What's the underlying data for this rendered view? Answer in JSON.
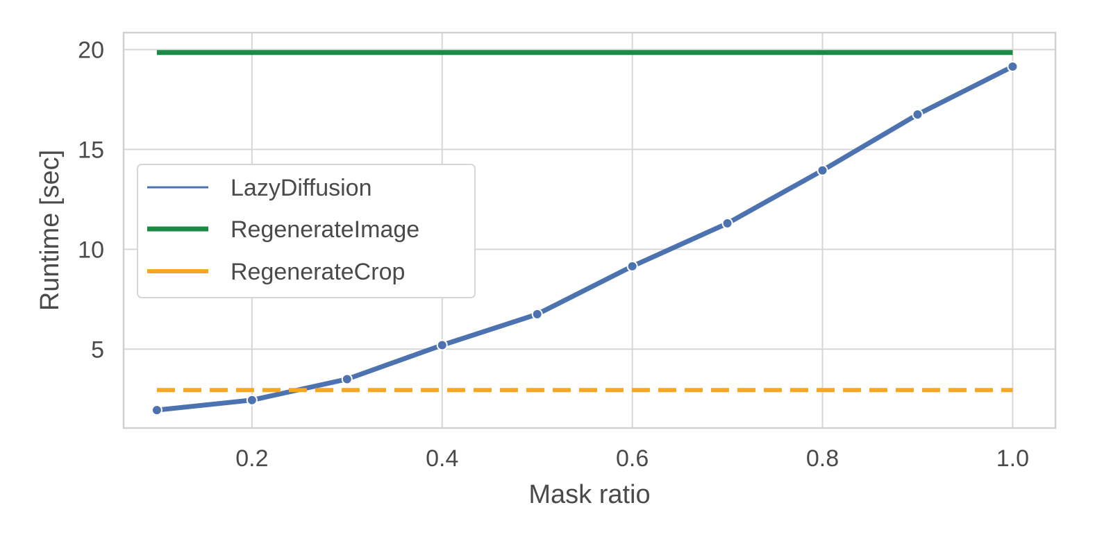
{
  "chart_data": {
    "type": "line",
    "xlabel": "Mask ratio",
    "ylabel": "Runtime [sec]",
    "xlim": [
      0.065,
      1.045
    ],
    "ylim": [
      1.05,
      20.85
    ],
    "xticks": [
      0.2,
      0.4,
      0.6,
      0.8,
      1.0
    ],
    "xtick_labels": [
      "0.2",
      "0.4",
      "0.6",
      "0.8",
      "1.0"
    ],
    "yticks": [
      5,
      10,
      15,
      20
    ],
    "ytick_labels": [
      "5",
      "10",
      "15",
      "20"
    ],
    "grid": true,
    "legend_position": "center-left",
    "series": [
      {
        "name": "LazyDiffusion",
        "color": "#4c72b0",
        "style": "solid",
        "markers": true,
        "x": [
          0.1,
          0.2,
          0.3,
          0.4,
          0.5,
          0.6,
          0.7,
          0.8,
          0.9,
          1.0
        ],
        "y": [
          1.95,
          2.45,
          3.5,
          5.2,
          6.75,
          9.15,
          11.3,
          13.95,
          16.75,
          19.15
        ]
      },
      {
        "name": "RegenerateImage",
        "color": "#1a8a45",
        "style": "solid",
        "markers": false,
        "x": [
          0.1,
          1.0
        ],
        "y": [
          19.85,
          19.85
        ]
      },
      {
        "name": "RegenerateCrop",
        "color": "#f5a623",
        "style": "dashed",
        "markers": false,
        "x": [
          0.1,
          1.0
        ],
        "y": [
          2.95,
          2.95
        ]
      }
    ]
  }
}
